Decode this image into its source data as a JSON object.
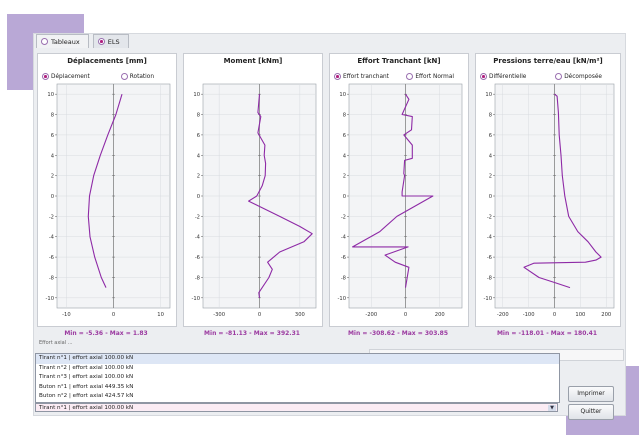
{
  "tabs": [
    {
      "label": "Tableaux",
      "selected": false
    },
    {
      "label": "ELS",
      "selected": true
    }
  ],
  "panels": [
    {
      "title": "Déplacements [mm]",
      "options": [
        {
          "label": "Déplacement",
          "selected": true
        },
        {
          "label": "Rotation",
          "selected": false
        }
      ],
      "minmax": "Min = -5.36  -  Max = 1.83",
      "chart_data": {
        "type": "line",
        "xlim": [
          -12,
          12
        ],
        "ylim": [
          -11,
          11
        ],
        "xticks": [
          -10,
          0,
          10
        ],
        "yticks": [
          10,
          8,
          6,
          4,
          2,
          0,
          -2,
          -4,
          -6,
          -8,
          -10
        ],
        "points": [
          [
            1.8,
            10
          ],
          [
            0.5,
            8
          ],
          [
            -1.2,
            6
          ],
          [
            -2.8,
            4
          ],
          [
            -4.2,
            2
          ],
          [
            -5.1,
            0
          ],
          [
            -5.36,
            -2
          ],
          [
            -5.0,
            -4
          ],
          [
            -4.0,
            -6
          ],
          [
            -2.6,
            -8
          ],
          [
            -1.6,
            -9
          ]
        ]
      }
    },
    {
      "title": "Moment [kNm]",
      "options": [],
      "minmax": "Min = -81.13  -  Max = 392.31",
      "chart_data": {
        "type": "line",
        "xlim": [
          -420,
          420
        ],
        "ylim": [
          -11,
          11
        ],
        "xticks": [
          -300,
          0,
          300
        ],
        "yticks": [
          10,
          8,
          6,
          4,
          2,
          0,
          -2,
          -4,
          -6,
          -8,
          -10
        ],
        "points": [
          [
            0,
            10
          ],
          [
            -12,
            8.2
          ],
          [
            10,
            7.8
          ],
          [
            -12,
            6.2
          ],
          [
            40,
            5
          ],
          [
            35,
            4
          ],
          [
            45,
            3.2
          ],
          [
            42,
            2
          ],
          [
            20,
            1
          ],
          [
            -20,
            0
          ],
          [
            -81,
            -0.5
          ],
          [
            150,
            -2
          ],
          [
            300,
            -3
          ],
          [
            392,
            -3.7
          ],
          [
            330,
            -4.5
          ],
          [
            150,
            -5.5
          ],
          [
            60,
            -6.5
          ],
          [
            95,
            -7.2
          ],
          [
            70,
            -8
          ],
          [
            -5,
            -9.5
          ],
          [
            0,
            -10
          ]
        ]
      }
    },
    {
      "title": "Effort Tranchant [kN]",
      "options": [
        {
          "label": "Effort tranchant",
          "selected": true
        },
        {
          "label": "Effort Normal",
          "selected": false
        }
      ],
      "minmax": "Min = -308.62  -  Max = 303.85",
      "chart_data": {
        "type": "line",
        "xlim": [
          -330,
          330
        ],
        "ylim": [
          -11,
          11
        ],
        "xticks": [
          -200,
          0,
          200
        ],
        "yticks": [
          10,
          8,
          6,
          4,
          2,
          0,
          -2,
          -4,
          -6,
          -8,
          -10
        ],
        "points": [
          [
            0,
            10
          ],
          [
            20,
            9.5
          ],
          [
            -20,
            8
          ],
          [
            40,
            7.8
          ],
          [
            35,
            6.5
          ],
          [
            -10,
            6
          ],
          [
            40,
            5
          ],
          [
            40,
            3.7
          ],
          [
            -5,
            3.5
          ],
          [
            -10,
            2.2
          ],
          [
            -5,
            2
          ],
          [
            -20,
            0.4
          ],
          [
            -20,
            0
          ],
          [
            160,
            0
          ],
          [
            -50,
            -2
          ],
          [
            -150,
            -3.5
          ],
          [
            -309,
            -5
          ],
          [
            15,
            -5
          ],
          [
            -120,
            -5.8
          ],
          [
            -60,
            -6.5
          ],
          [
            20,
            -7
          ],
          [
            0,
            -9
          ]
        ]
      }
    },
    {
      "title": "Pressions terre/eau [kN/m²]",
      "options": [
        {
          "label": "Différentielle",
          "selected": true
        },
        {
          "label": "Décomposée",
          "selected": false
        }
      ],
      "minmax": "Min = -118.01  -  Max = 180.41",
      "chart_data": {
        "type": "line",
        "xlim": [
          -230,
          230
        ],
        "ylim": [
          -11,
          11
        ],
        "xticks": [
          -200,
          -100,
          0,
          100,
          200
        ],
        "yticks": [
          10,
          8,
          6,
          4,
          2,
          0,
          -2,
          -4,
          -6,
          -8,
          -10
        ],
        "points": [
          [
            0,
            10
          ],
          [
            10,
            9.8
          ],
          [
            15,
            8.2
          ],
          [
            18,
            6
          ],
          [
            25,
            4
          ],
          [
            30,
            2
          ],
          [
            40,
            0
          ],
          [
            55,
            -2
          ],
          [
            90,
            -3.5
          ],
          [
            130,
            -4.5
          ],
          [
            160,
            -5.5
          ],
          [
            180,
            -6
          ],
          [
            160,
            -6.3
          ],
          [
            120,
            -6.5
          ],
          [
            -80,
            -6.6
          ],
          [
            -118,
            -7
          ],
          [
            -60,
            -8
          ],
          [
            0,
            -8.5
          ],
          [
            60,
            -9
          ]
        ]
      }
    }
  ],
  "info_text": "Effort axial ... ",
  "list": {
    "items": [
      "Tirant n°1 | effort axial 100.00 kN",
      "Tirant n°2 | effort axial 100.00 kN",
      "Tirant n°3 | effort axial 100.00 kN",
      "Buton n°1 | effort axial 449.35 kN",
      "Buton n°2 | effort axial 424.57 kN"
    ],
    "selected": 0
  },
  "combo_value": "Tirant n°1 | effort axial 100.00 kN",
  "buttons": {
    "print": "Imprimer",
    "quit": "Quitter"
  },
  "colors": {
    "curve": "#8e2aa6",
    "minmax": "#9b3aa0",
    "deco": "#b9a8d6"
  }
}
